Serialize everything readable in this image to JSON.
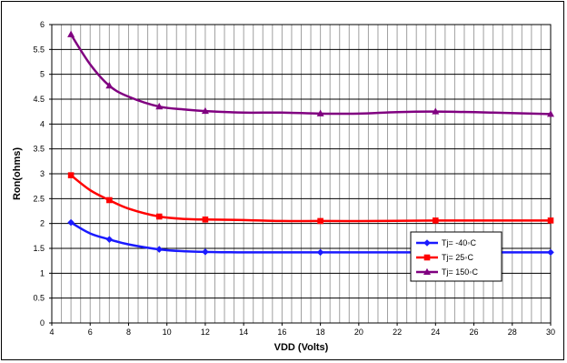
{
  "chart_data": {
    "type": "line",
    "title": "",
    "xlabel": "VDD (Volts)",
    "ylabel": "Ron(ohms)",
    "xlim": [
      4,
      30
    ],
    "ylim": [
      0,
      6
    ],
    "x_ticks": [
      4,
      6,
      8,
      10,
      12,
      14,
      16,
      18,
      20,
      22,
      24,
      26,
      28,
      30
    ],
    "y_ticks": [
      0,
      0.5,
      1,
      1.5,
      2,
      2.5,
      3,
      3.5,
      4,
      4.5,
      5,
      5.5,
      6
    ],
    "x_minor_grid_step": 0.5,
    "grid": true,
    "legend_position": "right",
    "series": [
      {
        "name": "Tj= -40◦C",
        "color": "#1a1aff",
        "marker": "diamond",
        "marker_x": [
          5,
          7,
          9.6,
          12,
          18,
          24,
          30
        ],
        "marker_y": [
          2.02,
          1.68,
          1.48,
          1.43,
          1.42,
          1.42,
          1.42
        ],
        "curve": [
          [
            5,
            2.02
          ],
          [
            6,
            1.8
          ],
          [
            7,
            1.68
          ],
          [
            8,
            1.58
          ],
          [
            9.6,
            1.48
          ],
          [
            11,
            1.44
          ],
          [
            12,
            1.43
          ],
          [
            14,
            1.42
          ],
          [
            18,
            1.42
          ],
          [
            24,
            1.42
          ],
          [
            30,
            1.42
          ]
        ]
      },
      {
        "name": "Tj= 25◦C",
        "color": "#ff0000",
        "marker": "square",
        "marker_x": [
          5,
          7,
          9.6,
          12,
          18,
          24,
          30
        ],
        "marker_y": [
          2.97,
          2.47,
          2.14,
          2.08,
          2.05,
          2.06,
          2.06
        ],
        "curve": [
          [
            5,
            2.97
          ],
          [
            6,
            2.67
          ],
          [
            7,
            2.47
          ],
          [
            8,
            2.3
          ],
          [
            9.6,
            2.14
          ],
          [
            11,
            2.09
          ],
          [
            12,
            2.08
          ],
          [
            14,
            2.07
          ],
          [
            16,
            2.05
          ],
          [
            18,
            2.05
          ],
          [
            21,
            2.05
          ],
          [
            24,
            2.06
          ],
          [
            30,
            2.06
          ]
        ]
      },
      {
        "name": "Tj= 150◦C",
        "color": "#800080",
        "marker": "triangle",
        "marker_x": [
          5,
          7,
          9.6,
          12,
          18,
          24,
          30
        ],
        "marker_y": [
          5.8,
          4.77,
          4.35,
          4.26,
          4.21,
          4.25,
          4.2
        ],
        "curve": [
          [
            5,
            5.8
          ],
          [
            6,
            5.2
          ],
          [
            7,
            4.77
          ],
          [
            8,
            4.55
          ],
          [
            9.6,
            4.35
          ],
          [
            11,
            4.29
          ],
          [
            12,
            4.26
          ],
          [
            14,
            4.23
          ],
          [
            16,
            4.23
          ],
          [
            18,
            4.21
          ],
          [
            20,
            4.21
          ],
          [
            22,
            4.24
          ],
          [
            24,
            4.25
          ],
          [
            27,
            4.23
          ],
          [
            30,
            4.2
          ]
        ]
      }
    ]
  }
}
